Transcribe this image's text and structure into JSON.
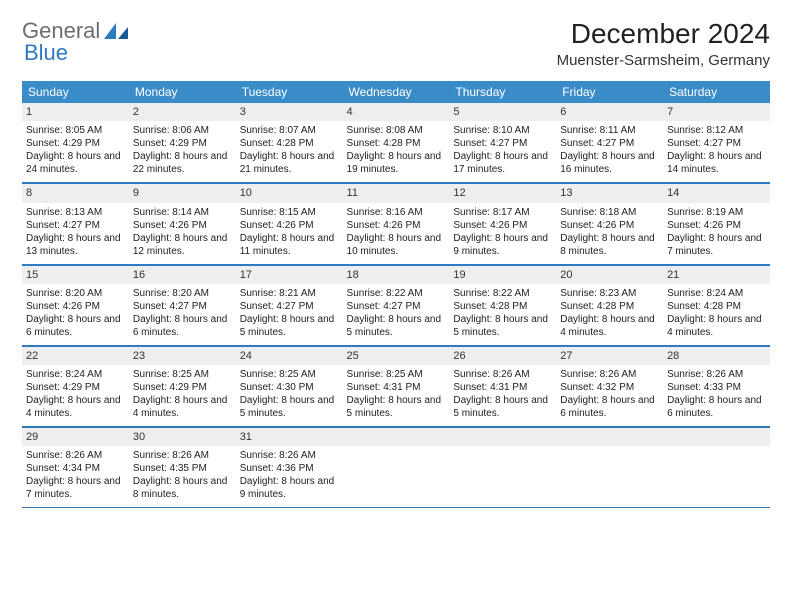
{
  "brand": {
    "part1": "General",
    "part2": "Blue"
  },
  "title": "December 2024",
  "location": "Muenster-Sarmsheim, Germany",
  "colors": {
    "header_bg": "#3a8cc9",
    "header_text": "#ffffff",
    "daynum_bg": "#eeeeee",
    "rule": "#2f7ac0",
    "brand_gray": "#6a6f73",
    "brand_blue": "#2f7ac0",
    "page_bg": "#ffffff",
    "text": "#222222"
  },
  "weekdays": [
    "Sunday",
    "Monday",
    "Tuesday",
    "Wednesday",
    "Thursday",
    "Friday",
    "Saturday"
  ],
  "weeks": [
    [
      {
        "n": "1",
        "sr": "8:05 AM",
        "ss": "4:29 PM",
        "dl": "8 hours and 24 minutes."
      },
      {
        "n": "2",
        "sr": "8:06 AM",
        "ss": "4:29 PM",
        "dl": "8 hours and 22 minutes."
      },
      {
        "n": "3",
        "sr": "8:07 AM",
        "ss": "4:28 PM",
        "dl": "8 hours and 21 minutes."
      },
      {
        "n": "4",
        "sr": "8:08 AM",
        "ss": "4:28 PM",
        "dl": "8 hours and 19 minutes."
      },
      {
        "n": "5",
        "sr": "8:10 AM",
        "ss": "4:27 PM",
        "dl": "8 hours and 17 minutes."
      },
      {
        "n": "6",
        "sr": "8:11 AM",
        "ss": "4:27 PM",
        "dl": "8 hours and 16 minutes."
      },
      {
        "n": "7",
        "sr": "8:12 AM",
        "ss": "4:27 PM",
        "dl": "8 hours and 14 minutes."
      }
    ],
    [
      {
        "n": "8",
        "sr": "8:13 AM",
        "ss": "4:27 PM",
        "dl": "8 hours and 13 minutes."
      },
      {
        "n": "9",
        "sr": "8:14 AM",
        "ss": "4:26 PM",
        "dl": "8 hours and 12 minutes."
      },
      {
        "n": "10",
        "sr": "8:15 AM",
        "ss": "4:26 PM",
        "dl": "8 hours and 11 minutes."
      },
      {
        "n": "11",
        "sr": "8:16 AM",
        "ss": "4:26 PM",
        "dl": "8 hours and 10 minutes."
      },
      {
        "n": "12",
        "sr": "8:17 AM",
        "ss": "4:26 PM",
        "dl": "8 hours and 9 minutes."
      },
      {
        "n": "13",
        "sr": "8:18 AM",
        "ss": "4:26 PM",
        "dl": "8 hours and 8 minutes."
      },
      {
        "n": "14",
        "sr": "8:19 AM",
        "ss": "4:26 PM",
        "dl": "8 hours and 7 minutes."
      }
    ],
    [
      {
        "n": "15",
        "sr": "8:20 AM",
        "ss": "4:26 PM",
        "dl": "8 hours and 6 minutes."
      },
      {
        "n": "16",
        "sr": "8:20 AM",
        "ss": "4:27 PM",
        "dl": "8 hours and 6 minutes."
      },
      {
        "n": "17",
        "sr": "8:21 AM",
        "ss": "4:27 PM",
        "dl": "8 hours and 5 minutes."
      },
      {
        "n": "18",
        "sr": "8:22 AM",
        "ss": "4:27 PM",
        "dl": "8 hours and 5 minutes."
      },
      {
        "n": "19",
        "sr": "8:22 AM",
        "ss": "4:28 PM",
        "dl": "8 hours and 5 minutes."
      },
      {
        "n": "20",
        "sr": "8:23 AM",
        "ss": "4:28 PM",
        "dl": "8 hours and 4 minutes."
      },
      {
        "n": "21",
        "sr": "8:24 AM",
        "ss": "4:28 PM",
        "dl": "8 hours and 4 minutes."
      }
    ],
    [
      {
        "n": "22",
        "sr": "8:24 AM",
        "ss": "4:29 PM",
        "dl": "8 hours and 4 minutes."
      },
      {
        "n": "23",
        "sr": "8:25 AM",
        "ss": "4:29 PM",
        "dl": "8 hours and 4 minutes."
      },
      {
        "n": "24",
        "sr": "8:25 AM",
        "ss": "4:30 PM",
        "dl": "8 hours and 5 minutes."
      },
      {
        "n": "25",
        "sr": "8:25 AM",
        "ss": "4:31 PM",
        "dl": "8 hours and 5 minutes."
      },
      {
        "n": "26",
        "sr": "8:26 AM",
        "ss": "4:31 PM",
        "dl": "8 hours and 5 minutes."
      },
      {
        "n": "27",
        "sr": "8:26 AM",
        "ss": "4:32 PM",
        "dl": "8 hours and 6 minutes."
      },
      {
        "n": "28",
        "sr": "8:26 AM",
        "ss": "4:33 PM",
        "dl": "8 hours and 6 minutes."
      }
    ],
    [
      {
        "n": "29",
        "sr": "8:26 AM",
        "ss": "4:34 PM",
        "dl": "8 hours and 7 minutes."
      },
      {
        "n": "30",
        "sr": "8:26 AM",
        "ss": "4:35 PM",
        "dl": "8 hours and 8 minutes."
      },
      {
        "n": "31",
        "sr": "8:26 AM",
        "ss": "4:36 PM",
        "dl": "8 hours and 9 minutes."
      },
      {
        "empty": true
      },
      {
        "empty": true
      },
      {
        "empty": true
      },
      {
        "empty": true
      }
    ]
  ],
  "labels": {
    "sunrise": "Sunrise: ",
    "sunset": "Sunset: ",
    "daylight": "Daylight: "
  }
}
